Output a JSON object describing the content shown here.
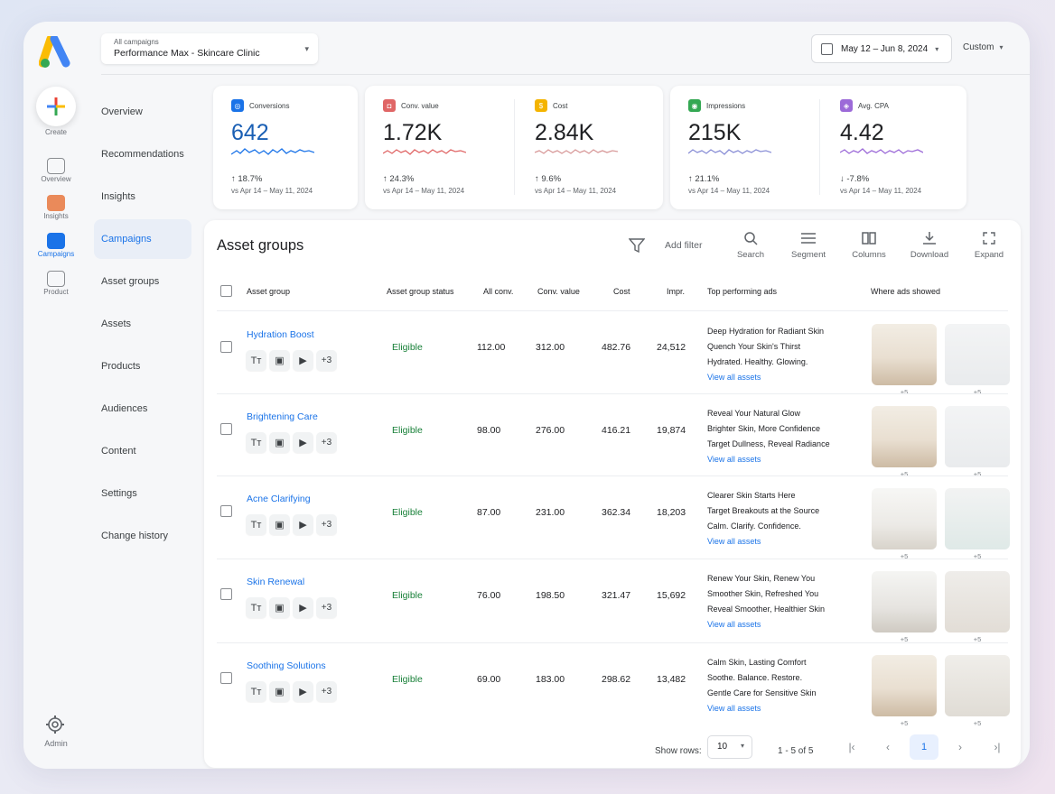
{
  "rail": {
    "create_label": "Create",
    "items": [
      {
        "label": "Overview",
        "color": "#8a8d91"
      },
      {
        "label": "Insights",
        "color": "#ea8a5a"
      },
      {
        "label": "Campaigns",
        "color": "#1a73e8"
      },
      {
        "label": "Product",
        "color": "#8a8d91"
      }
    ],
    "admin_label": "Admin"
  },
  "nav": {
    "items": [
      "Overview",
      "Recommendations",
      "Insights",
      "Campaigns",
      "Asset groups",
      "Assets",
      "Products",
      "Audiences",
      "Content",
      "Settings",
      "Change history"
    ],
    "active": "Campaigns"
  },
  "header": {
    "campaign_sub": "All campaigns",
    "campaign_name": "Performance Max - Skincare Clinic",
    "date_range": "May 12 – Jun 8, 2024",
    "custom_label": "Custom"
  },
  "metrics": [
    {
      "label": "Conversions",
      "value": "642",
      "delta": "18.7%",
      "direction": "up",
      "vs": "vs Apr 14 – May 11, 2024",
      "color": "#1a73e8",
      "value_color": "#1a5fb4",
      "icon": "conversions-icon"
    },
    {
      "label": "Conv. value",
      "value": "1.72K",
      "delta": "24.3%",
      "direction": "up",
      "vs": "vs Apr 14 – May 11, 2024",
      "color": "#e06666",
      "value_color": "#202124",
      "icon": "conv-value-icon"
    },
    {
      "label": "Cost",
      "value": "2.84K",
      "delta": "9.6%",
      "direction": "up",
      "vs": "vs Apr 14 – May 11, 2024",
      "color": "#f4b400",
      "value_color": "#202124",
      "icon": "cost-icon"
    },
    {
      "label": "Impressions",
      "value": "215K",
      "delta": "21.1%",
      "direction": "up",
      "vs": "vs Apr 14 – May 11, 2024",
      "color": "#34a853",
      "value_color": "#202124",
      "icon": "impressions-icon"
    },
    {
      "label": "Avg. CPA",
      "value": "4.42",
      "delta": "-7.8%",
      "direction": "down",
      "vs": "vs Apr 14 – May 11, 2024",
      "color": "#9c6ad8",
      "value_color": "#202124",
      "icon": "avg-cpa-icon"
    }
  ],
  "panel": {
    "title": "Asset groups",
    "add_filter": "Add filter",
    "toolbar": [
      "Search",
      "Segment",
      "Columns",
      "Download",
      "Expand"
    ],
    "columns": [
      "Asset group",
      "Asset group status",
      "All conv.",
      "Conv. value",
      "Cost",
      "Impr.",
      "Top performing ads",
      "Where ads showed"
    ],
    "rows": [
      {
        "name": "Hydration Boost",
        "status": "Eligible",
        "conv": "112.00",
        "value": "312.00",
        "cost": "482.76",
        "impr": "24,512",
        "more": "+3",
        "ads": [
          "Deep Hydration for Radiant Skin",
          "Quench Your Skin's Thirst",
          "Hydrated. Healthy. Glowing."
        ],
        "link": "View all assets",
        "thumb_more": "+5"
      },
      {
        "name": "Brightening Care",
        "status": "Eligible",
        "conv": "98.00",
        "value": "276.00",
        "cost": "416.21",
        "impr": "19,874",
        "more": "+3",
        "ads": [
          "Reveal Your Natural Glow",
          "Brighter Skin, More Confidence",
          "Target Dullness, Reveal Radiance"
        ],
        "link": "View all assets",
        "thumb_more": "+5"
      },
      {
        "name": "Acne Clarifying",
        "status": "Eligible",
        "conv": "87.00",
        "value": "231.00",
        "cost": "362.34",
        "impr": "18,203",
        "more": "+3",
        "ads": [
          "Clearer Skin Starts Here",
          "Target Breakouts at the Source",
          "Calm. Clarify. Confidence."
        ],
        "link": "View all assets",
        "thumb_more": "+5"
      },
      {
        "name": "Skin Renewal",
        "status": "Eligible",
        "conv": "76.00",
        "value": "198.50",
        "cost": "321.47",
        "impr": "15,692",
        "more": "+3",
        "ads": [
          "Renew Your Skin, Renew You",
          "Smoother Skin, Refreshed You",
          "Reveal Smoother, Healthier Skin"
        ],
        "link": "View all assets",
        "thumb_more": "+5"
      },
      {
        "name": "Soothing Solutions",
        "status": "Eligible",
        "conv": "69.00",
        "value": "183.00",
        "cost": "298.62",
        "impr": "13,482",
        "more": "+3",
        "ads": [
          "Calm Skin, Lasting Comfort",
          "Soothe. Balance. Restore.",
          "Gentle Care for Sensitive Skin"
        ],
        "link": "View all assets",
        "thumb_more": "+5"
      }
    ]
  },
  "footer": {
    "show_rows_label": "Show rows:",
    "rows_value": "10",
    "range": "1 - 5 of 5",
    "page": "1"
  }
}
